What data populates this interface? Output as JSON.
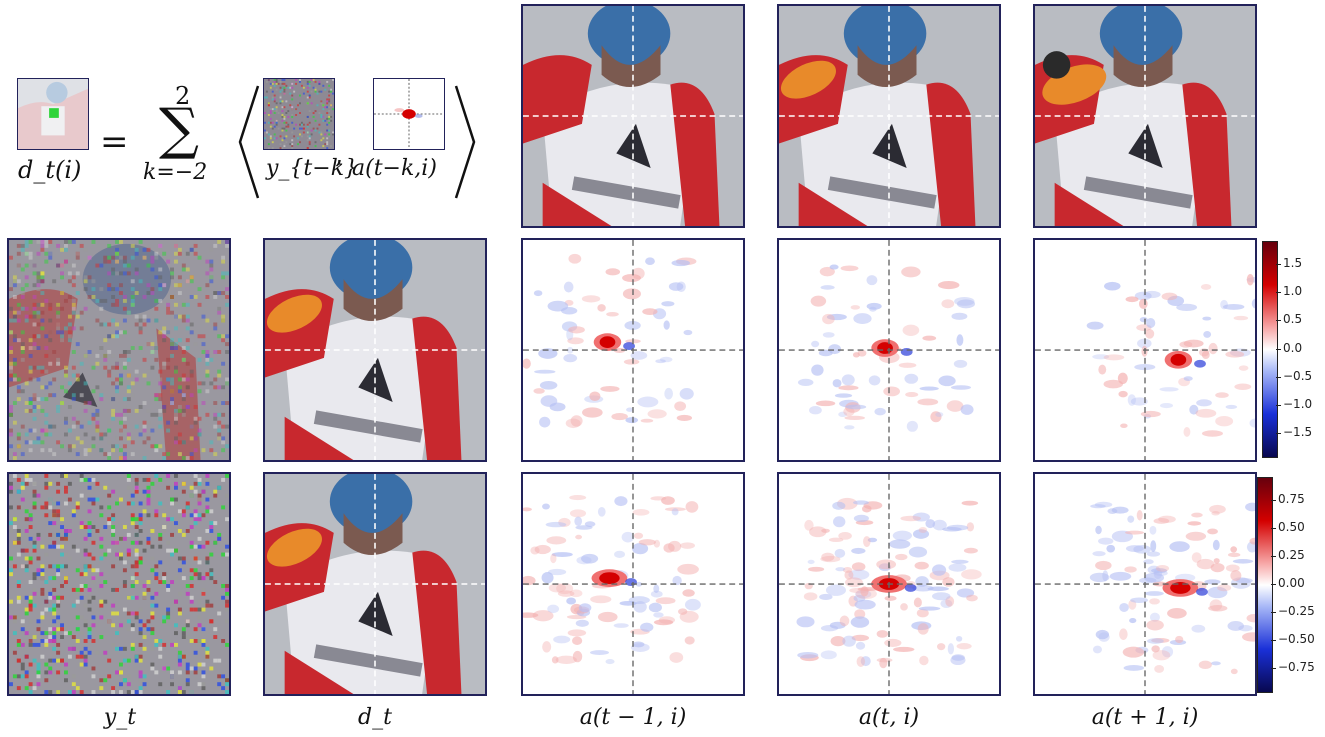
{
  "equation": {
    "lhs": "d_t(i)",
    "equals": "=",
    "sum_upper": "2",
    "sum_lower": "k=−2",
    "sigma": "∑",
    "term1": "y_{t−k}",
    "comma": ",",
    "term2": "a(t−k,i)"
  },
  "column_labels": [
    "y_t",
    "d_t",
    "a(t − 1, i)",
    "a(t, i)",
    "a(t + 1, i)"
  ],
  "colorbars": [
    {
      "ticks": [
        "1.5",
        "1.0",
        "0.5",
        "0.0",
        "−0.5",
        "−1.0",
        "−1.5"
      ],
      "values": [
        1.5,
        1.0,
        0.5,
        0.0,
        -0.5,
        -1.0,
        -1.5
      ],
      "range": [
        -1.9,
        1.9
      ]
    },
    {
      "ticks": [
        "0.75",
        "0.50",
        "0.25",
        "0.00",
        "−0.25",
        "−0.50",
        "−0.75"
      ],
      "values": [
        0.75,
        0.5,
        0.25,
        0.0,
        -0.25,
        -0.5,
        -0.75
      ],
      "range": [
        -0.95,
        0.95
      ]
    }
  ],
  "colors": {
    "frame": "#22225a",
    "red": "#d40000",
    "blue": "#2a3cd8",
    "snow": "#b9bcc2",
    "suit": "#c8282e",
    "helmet": "#3a6fa8"
  }
}
